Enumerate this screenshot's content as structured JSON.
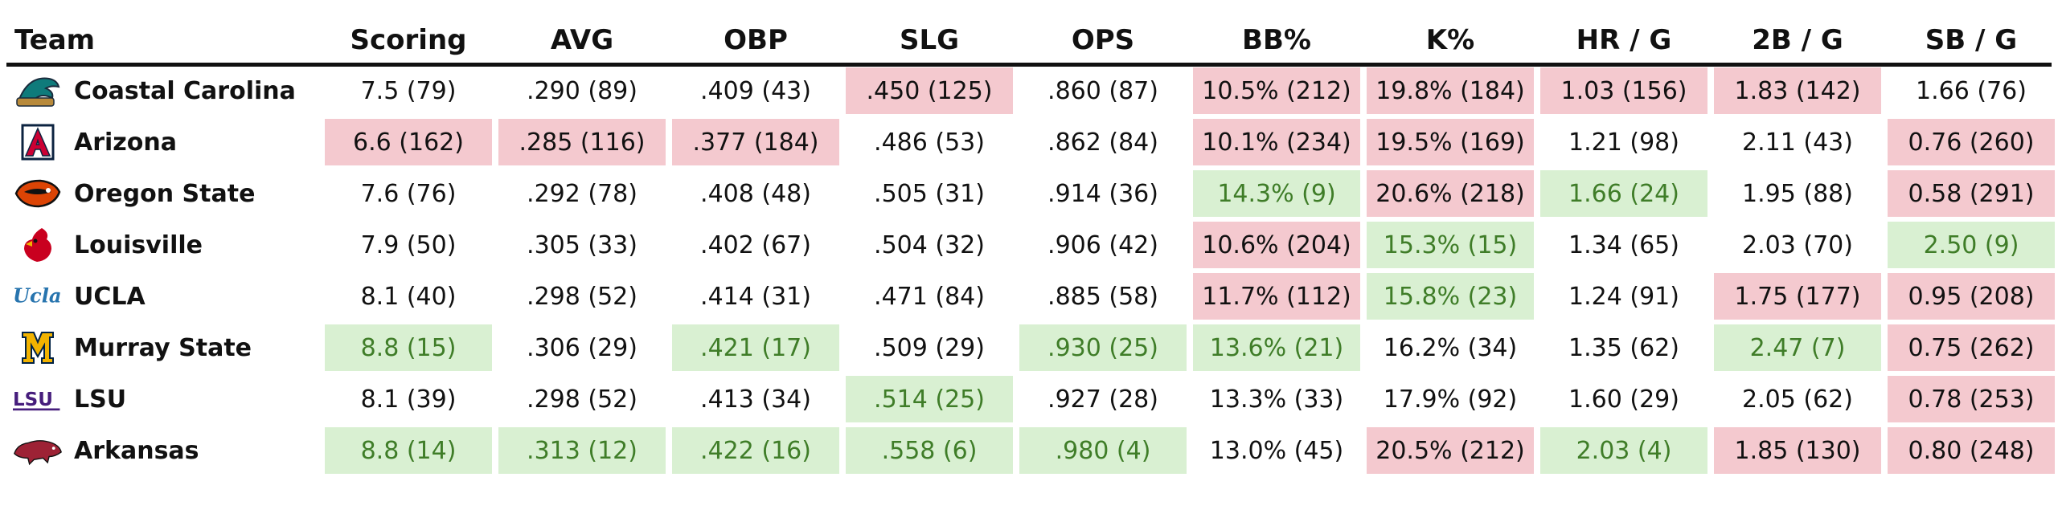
{
  "chart_data": {
    "type": "table",
    "columns": [
      "Team",
      "Scoring",
      "AVG",
      "OBP",
      "SLG",
      "OPS",
      "BB%",
      "K%",
      "HR / G",
      "2B / G",
      "SB / G"
    ],
    "rows": [
      {
        "team": "Coastal Carolina",
        "logo": "coastal-carolina-logo-icon",
        "cells": [
          {
            "text": "7.5 (79)",
            "value": 7.5,
            "rank": 79,
            "tone": "none"
          },
          {
            "text": ".290 (89)",
            "value": 0.29,
            "rank": 89,
            "tone": "none"
          },
          {
            "text": ".409 (43)",
            "value": 0.409,
            "rank": 43,
            "tone": "none"
          },
          {
            "text": ".450 (125)",
            "value": 0.45,
            "rank": 125,
            "tone": "bad"
          },
          {
            "text": ".860 (87)",
            "value": 0.86,
            "rank": 87,
            "tone": "none"
          },
          {
            "text": "10.5% (212)",
            "value": 10.5,
            "rank": 212,
            "tone": "bad"
          },
          {
            "text": "19.8% (184)",
            "value": 19.8,
            "rank": 184,
            "tone": "bad"
          },
          {
            "text": "1.03 (156)",
            "value": 1.03,
            "rank": 156,
            "tone": "bad"
          },
          {
            "text": "1.83 (142)",
            "value": 1.83,
            "rank": 142,
            "tone": "bad"
          },
          {
            "text": "1.66 (76)",
            "value": 1.66,
            "rank": 76,
            "tone": "none"
          }
        ]
      },
      {
        "team": "Arizona",
        "logo": "arizona-logo-icon",
        "cells": [
          {
            "text": "6.6 (162)",
            "value": 6.6,
            "rank": 162,
            "tone": "bad"
          },
          {
            "text": ".285 (116)",
            "value": 0.285,
            "rank": 116,
            "tone": "bad"
          },
          {
            "text": ".377 (184)",
            "value": 0.377,
            "rank": 184,
            "tone": "bad"
          },
          {
            "text": ".486 (53)",
            "value": 0.486,
            "rank": 53,
            "tone": "none"
          },
          {
            "text": ".862 (84)",
            "value": 0.862,
            "rank": 84,
            "tone": "none"
          },
          {
            "text": "10.1% (234)",
            "value": 10.1,
            "rank": 234,
            "tone": "bad"
          },
          {
            "text": "19.5% (169)",
            "value": 19.5,
            "rank": 169,
            "tone": "bad"
          },
          {
            "text": "1.21 (98)",
            "value": 1.21,
            "rank": 98,
            "tone": "none"
          },
          {
            "text": "2.11 (43)",
            "value": 2.11,
            "rank": 43,
            "tone": "none"
          },
          {
            "text": "0.76 (260)",
            "value": 0.76,
            "rank": 260,
            "tone": "bad"
          }
        ]
      },
      {
        "team": "Oregon State",
        "logo": "oregon-state-logo-icon",
        "cells": [
          {
            "text": "7.6 (76)",
            "value": 7.6,
            "rank": 76,
            "tone": "none"
          },
          {
            "text": ".292 (78)",
            "value": 0.292,
            "rank": 78,
            "tone": "none"
          },
          {
            "text": ".408 (48)",
            "value": 0.408,
            "rank": 48,
            "tone": "none"
          },
          {
            "text": ".505 (31)",
            "value": 0.505,
            "rank": 31,
            "tone": "none"
          },
          {
            "text": ".914 (36)",
            "value": 0.914,
            "rank": 36,
            "tone": "none"
          },
          {
            "text": "14.3% (9)",
            "value": 14.3,
            "rank": 9,
            "tone": "good"
          },
          {
            "text": "20.6% (218)",
            "value": 20.6,
            "rank": 218,
            "tone": "bad"
          },
          {
            "text": "1.66 (24)",
            "value": 1.66,
            "rank": 24,
            "tone": "good"
          },
          {
            "text": "1.95 (88)",
            "value": 1.95,
            "rank": 88,
            "tone": "none"
          },
          {
            "text": "0.58 (291)",
            "value": 0.58,
            "rank": 291,
            "tone": "bad"
          }
        ]
      },
      {
        "team": "Louisville",
        "logo": "louisville-logo-icon",
        "cells": [
          {
            "text": "7.9 (50)",
            "value": 7.9,
            "rank": 50,
            "tone": "none"
          },
          {
            "text": ".305 (33)",
            "value": 0.305,
            "rank": 33,
            "tone": "none"
          },
          {
            "text": ".402 (67)",
            "value": 0.402,
            "rank": 67,
            "tone": "none"
          },
          {
            "text": ".504 (32)",
            "value": 0.504,
            "rank": 32,
            "tone": "none"
          },
          {
            "text": ".906 (42)",
            "value": 0.906,
            "rank": 42,
            "tone": "none"
          },
          {
            "text": "10.6% (204)",
            "value": 10.6,
            "rank": 204,
            "tone": "bad"
          },
          {
            "text": "15.3% (15)",
            "value": 15.3,
            "rank": 15,
            "tone": "good"
          },
          {
            "text": "1.34 (65)",
            "value": 1.34,
            "rank": 65,
            "tone": "none"
          },
          {
            "text": "2.03 (70)",
            "value": 2.03,
            "rank": 70,
            "tone": "none"
          },
          {
            "text": "2.50 (9)",
            "value": 2.5,
            "rank": 9,
            "tone": "good"
          }
        ]
      },
      {
        "team": "UCLA",
        "logo": "ucla-logo-icon",
        "cells": [
          {
            "text": "8.1 (40)",
            "value": 8.1,
            "rank": 40,
            "tone": "none"
          },
          {
            "text": ".298 (52)",
            "value": 0.298,
            "rank": 52,
            "tone": "none"
          },
          {
            "text": ".414 (31)",
            "value": 0.414,
            "rank": 31,
            "tone": "none"
          },
          {
            "text": ".471 (84)",
            "value": 0.471,
            "rank": 84,
            "tone": "none"
          },
          {
            "text": ".885 (58)",
            "value": 0.885,
            "rank": 58,
            "tone": "none"
          },
          {
            "text": "11.7% (112)",
            "value": 11.7,
            "rank": 112,
            "tone": "bad"
          },
          {
            "text": "15.8% (23)",
            "value": 15.8,
            "rank": 23,
            "tone": "good"
          },
          {
            "text": "1.24 (91)",
            "value": 1.24,
            "rank": 91,
            "tone": "none"
          },
          {
            "text": "1.75 (177)",
            "value": 1.75,
            "rank": 177,
            "tone": "bad"
          },
          {
            "text": "0.95 (208)",
            "value": 0.95,
            "rank": 208,
            "tone": "bad"
          }
        ]
      },
      {
        "team": "Murray State",
        "logo": "murray-state-logo-icon",
        "cells": [
          {
            "text": "8.8 (15)",
            "value": 8.8,
            "rank": 15,
            "tone": "good"
          },
          {
            "text": ".306 (29)",
            "value": 0.306,
            "rank": 29,
            "tone": "none"
          },
          {
            "text": ".421 (17)",
            "value": 0.421,
            "rank": 17,
            "tone": "good"
          },
          {
            "text": ".509 (29)",
            "value": 0.509,
            "rank": 29,
            "tone": "none"
          },
          {
            "text": ".930 (25)",
            "value": 0.93,
            "rank": 25,
            "tone": "good"
          },
          {
            "text": "13.6% (21)",
            "value": 13.6,
            "rank": 21,
            "tone": "good"
          },
          {
            "text": "16.2% (34)",
            "value": 16.2,
            "rank": 34,
            "tone": "none"
          },
          {
            "text": "1.35 (62)",
            "value": 1.35,
            "rank": 62,
            "tone": "none"
          },
          {
            "text": "2.47 (7)",
            "value": 2.47,
            "rank": 7,
            "tone": "good"
          },
          {
            "text": "0.75 (262)",
            "value": 0.75,
            "rank": 262,
            "tone": "bad"
          }
        ]
      },
      {
        "team": "LSU",
        "logo": "lsu-logo-icon",
        "cells": [
          {
            "text": "8.1 (39)",
            "value": 8.1,
            "rank": 39,
            "tone": "none"
          },
          {
            "text": ".298 (52)",
            "value": 0.298,
            "rank": 52,
            "tone": "none"
          },
          {
            "text": ".413 (34)",
            "value": 0.413,
            "rank": 34,
            "tone": "none"
          },
          {
            "text": ".514 (25)",
            "value": 0.514,
            "rank": 25,
            "tone": "good"
          },
          {
            "text": ".927 (28)",
            "value": 0.927,
            "rank": 28,
            "tone": "none"
          },
          {
            "text": "13.3% (33)",
            "value": 13.3,
            "rank": 33,
            "tone": "none"
          },
          {
            "text": "17.9% (92)",
            "value": 17.9,
            "rank": 92,
            "tone": "none"
          },
          {
            "text": "1.60 (29)",
            "value": 1.6,
            "rank": 29,
            "tone": "none"
          },
          {
            "text": "2.05 (62)",
            "value": 2.05,
            "rank": 62,
            "tone": "none"
          },
          {
            "text": "0.78 (253)",
            "value": 0.78,
            "rank": 253,
            "tone": "bad"
          }
        ]
      },
      {
        "team": "Arkansas",
        "logo": "arkansas-logo-icon",
        "cells": [
          {
            "text": "8.8 (14)",
            "value": 8.8,
            "rank": 14,
            "tone": "good"
          },
          {
            "text": ".313 (12)",
            "value": 0.313,
            "rank": 12,
            "tone": "good"
          },
          {
            "text": ".422 (16)",
            "value": 0.422,
            "rank": 16,
            "tone": "good"
          },
          {
            "text": ".558 (6)",
            "value": 0.558,
            "rank": 6,
            "tone": "good"
          },
          {
            "text": ".980 (4)",
            "value": 0.98,
            "rank": 4,
            "tone": "good"
          },
          {
            "text": "13.0% (45)",
            "value": 13.0,
            "rank": 45,
            "tone": "none"
          },
          {
            "text": "20.5% (212)",
            "value": 20.5,
            "rank": 212,
            "tone": "bad"
          },
          {
            "text": "2.03 (4)",
            "value": 2.03,
            "rank": 4,
            "tone": "good"
          },
          {
            "text": "1.85 (130)",
            "value": 1.85,
            "rank": 130,
            "tone": "bad"
          },
          {
            "text": "0.80 (248)",
            "value": 0.8,
            "rank": 248,
            "tone": "bad"
          }
        ]
      }
    ]
  },
  "colors": {
    "good_fill": "#d9f0d2",
    "good_text": "#3f7d28",
    "bad_fill": "#f4c9cf",
    "header_rule": "#111111"
  },
  "logo_text": {
    "ucla": "Ucla",
    "lsu": "LSU"
  }
}
